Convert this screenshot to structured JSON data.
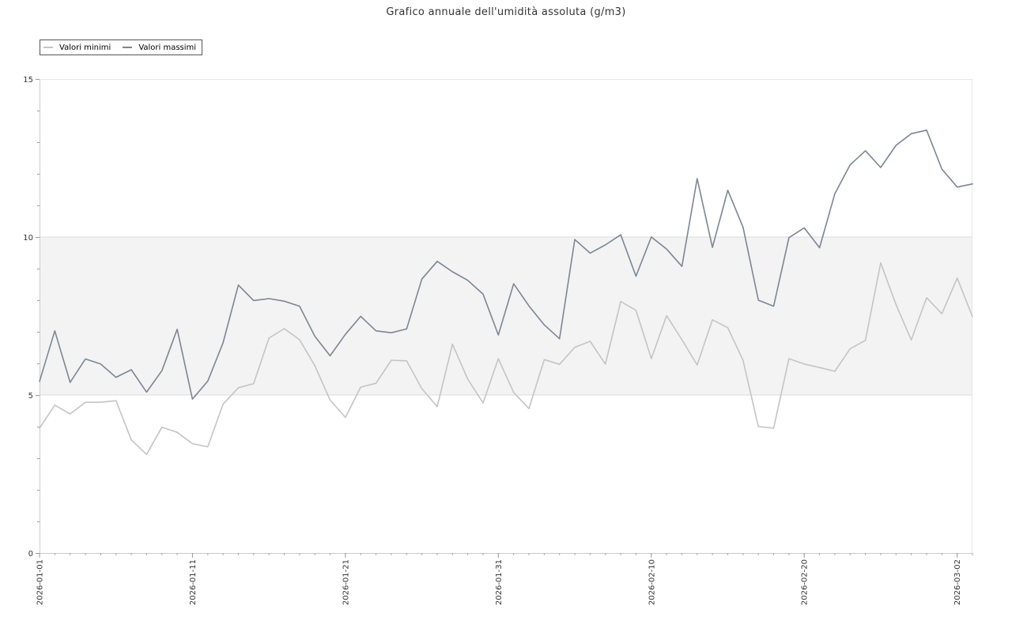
{
  "colors": {
    "min_series": "#c4c4c4",
    "max_series": "#7b8694",
    "band": "#f3f3f3",
    "axis": "#cccccc",
    "text": "#333333"
  },
  "chart_data": {
    "type": "line",
    "title": "Grafico annuale dell'umidità assoluta (g/m3)",
    "xlabel": "",
    "ylabel": "",
    "ylim": [
      0,
      15
    ],
    "y_ticks": [
      "0",
      "5",
      "10",
      "15"
    ],
    "x_tick_labels": [
      "2026-01-01",
      "2026-01-11",
      "2026-01-21",
      "2026-01-31",
      "2026-02-10",
      "2026-02-20",
      "2026-03-02"
    ],
    "x_start": "2026-01-01",
    "x_end": "2026-03-03",
    "highlight_band": [
      5,
      10
    ],
    "legend_position": "top-left",
    "grid": false,
    "x": [
      "2026-01-01",
      "2026-01-02",
      "2026-01-03",
      "2026-01-04",
      "2026-01-05",
      "2026-01-06",
      "2026-01-07",
      "2026-01-08",
      "2026-01-09",
      "2026-01-10",
      "2026-01-11",
      "2026-01-12",
      "2026-01-13",
      "2026-01-14",
      "2026-01-15",
      "2026-01-16",
      "2026-01-17",
      "2026-01-18",
      "2026-01-19",
      "2026-01-20",
      "2026-01-21",
      "2026-01-22",
      "2026-01-23",
      "2026-01-24",
      "2026-01-25",
      "2026-01-26",
      "2026-01-27",
      "2026-01-28",
      "2026-01-29",
      "2026-01-30",
      "2026-01-31",
      "2026-02-01",
      "2026-02-02",
      "2026-02-03",
      "2026-02-04",
      "2026-02-05",
      "2026-02-06",
      "2026-02-07",
      "2026-02-08",
      "2026-02-09",
      "2026-02-10",
      "2026-02-11",
      "2026-02-12",
      "2026-02-13",
      "2026-02-14",
      "2026-02-15",
      "2026-02-16",
      "2026-02-17",
      "2026-02-18",
      "2026-02-19",
      "2026-02-20",
      "2026-02-21",
      "2026-02-22",
      "2026-02-23",
      "2026-02-24",
      "2026-02-25",
      "2026-02-26",
      "2026-02-27",
      "2026-02-28",
      "2026-03-01",
      "2026-03-02",
      "2026-03-03"
    ],
    "series": [
      {
        "name": "Valori minimi",
        "values": [
          3.95,
          4.68,
          4.4,
          4.77,
          4.77,
          4.82,
          3.58,
          3.12,
          3.98,
          3.82,
          3.46,
          3.36,
          4.71,
          5.23,
          5.36,
          6.8,
          7.1,
          6.75,
          5.93,
          4.84,
          4.29,
          5.25,
          5.37,
          6.1,
          6.08,
          5.2,
          4.63,
          6.61,
          5.5,
          4.75,
          6.15,
          5.08,
          4.57,
          6.12,
          5.97,
          6.51,
          6.7,
          5.98,
          7.96,
          7.68,
          6.15,
          7.51,
          6.75,
          5.95,
          7.38,
          7.13,
          6.1,
          4.0,
          3.95,
          6.15,
          5.98,
          5.87,
          5.75,
          6.46,
          6.73,
          9.18,
          7.86,
          6.74,
          8.08,
          7.57,
          8.7,
          7.48
        ]
      },
      {
        "name": "Valori massimi",
        "values": [
          5.43,
          7.03,
          5.4,
          6.14,
          5.98,
          5.56,
          5.8,
          5.09,
          5.77,
          7.08,
          4.87,
          5.44,
          6.65,
          8.48,
          7.99,
          8.05,
          7.97,
          7.81,
          6.86,
          6.24,
          6.92,
          7.49,
          7.03,
          6.97,
          7.09,
          8.67,
          9.23,
          8.9,
          8.63,
          8.19,
          6.9,
          8.52,
          7.82,
          7.22,
          6.78,
          9.92,
          9.49,
          9.75,
          10.07,
          8.76,
          10.0,
          9.62,
          9.07,
          11.85,
          9.67,
          11.48,
          10.31,
          8.0,
          7.81,
          9.98,
          10.29,
          9.66,
          11.37,
          12.28,
          12.73,
          12.2,
          12.9,
          13.27,
          13.38,
          12.15,
          11.58,
          11.68
        ]
      }
    ]
  }
}
